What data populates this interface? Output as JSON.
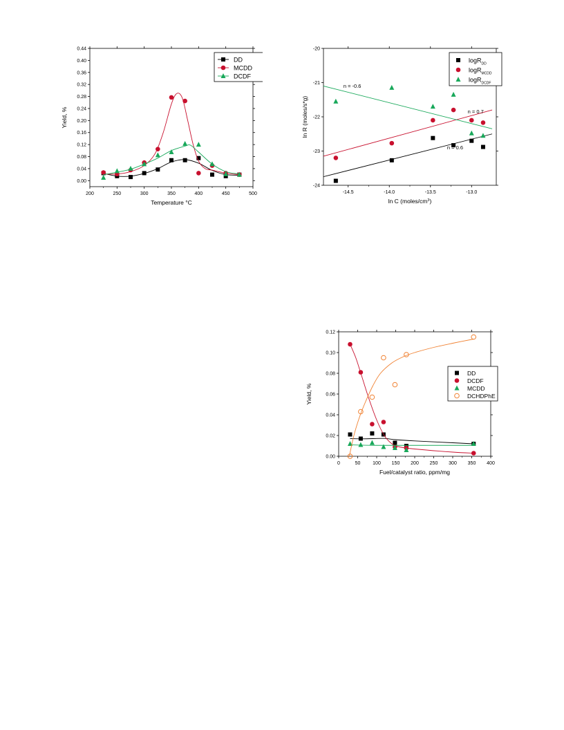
{
  "chart_data": [
    {
      "type": "scatter",
      "xlabel": "Temperature °C",
      "ylabel": "Yield, %",
      "xlim": [
        200,
        500
      ],
      "ylim": [
        -0.02,
        0.44
      ],
      "xticks": [
        200,
        250,
        300,
        350,
        400,
        450,
        500
      ],
      "xtick_labels": [
        "200",
        "250",
        "300",
        "350",
        "400",
        "450",
        "500"
      ],
      "yticks": [
        0.0,
        0.04,
        0.08,
        0.12,
        0.16,
        0.2,
        0.24,
        0.28,
        0.32,
        0.36,
        0.4,
        0.44
      ],
      "ytick_labels": [
        "0.00",
        "0.04",
        "0.08",
        "0.12",
        "0.16",
        "0.20",
        "0.24",
        "0.28",
        "0.32",
        "0.36",
        "0.40",
        "0.44"
      ],
      "legend": "top-right",
      "grid": false,
      "series": [
        {
          "name": "DD",
          "marker": "square",
          "color": "#000000",
          "points": [
            [
              225,
              0.025
            ],
            [
              250,
              0.015
            ],
            [
              275,
              0.012
            ],
            [
              300,
              0.025
            ],
            [
              325,
              0.037
            ],
            [
              350,
              0.068
            ],
            [
              375,
              0.068
            ],
            [
              400,
              0.075
            ],
            [
              425,
              0.02
            ],
            [
              450,
              0.015
            ],
            [
              475,
              0.02
            ]
          ],
          "fit": [
            [
              225,
              0.024
            ],
            [
              250,
              0.015
            ],
            [
              275,
              0.015
            ],
            [
              300,
              0.024
            ],
            [
              325,
              0.04
            ],
            [
              350,
              0.062
            ],
            [
              375,
              0.07
            ],
            [
              400,
              0.058
            ],
            [
              425,
              0.034
            ],
            [
              450,
              0.02
            ],
            [
              475,
              0.018
            ]
          ]
        },
        {
          "name": "MCDD",
          "marker": "circle",
          "color": "#c8102e",
          "points": [
            [
              225,
              0.027
            ],
            [
              250,
              0.022
            ],
            [
              275,
              0.035
            ],
            [
              300,
              0.06
            ],
            [
              325,
              0.105
            ],
            [
              350,
              0.277
            ],
            [
              375,
              0.265
            ],
            [
              400,
              0.025
            ],
            [
              425,
              0.05
            ],
            [
              450,
              0.025
            ],
            [
              475,
              0.02
            ]
          ],
          "fit": [
            [
              225,
              0.022
            ],
            [
              250,
              0.022
            ],
            [
              275,
              0.03
            ],
            [
              300,
              0.05
            ],
            [
              320,
              0.09
            ],
            [
              335,
              0.16
            ],
            [
              350,
              0.255
            ],
            [
              360,
              0.29
            ],
            [
              370,
              0.275
            ],
            [
              380,
              0.2
            ],
            [
              390,
              0.12
            ],
            [
              400,
              0.065
            ],
            [
              412,
              0.04
            ],
            [
              425,
              0.035
            ],
            [
              450,
              0.025
            ],
            [
              475,
              0.02
            ]
          ]
        },
        {
          "name": "DCDF",
          "marker": "triangle",
          "color": "#18a85a",
          "points": [
            [
              225,
              0.01
            ],
            [
              250,
              0.032
            ],
            [
              275,
              0.04
            ],
            [
              300,
              0.055
            ],
            [
              325,
              0.085
            ],
            [
              350,
              0.095
            ],
            [
              375,
              0.123
            ],
            [
              400,
              0.12
            ],
            [
              425,
              0.055
            ],
            [
              450,
              0.022
            ],
            [
              475,
              0.02
            ]
          ],
          "fit": [
            [
              225,
              0.02
            ],
            [
              250,
              0.028
            ],
            [
              275,
              0.038
            ],
            [
              300,
              0.055
            ],
            [
              325,
              0.075
            ],
            [
              350,
              0.1
            ],
            [
              375,
              0.115
            ],
            [
              385,
              0.118
            ],
            [
              400,
              0.095
            ],
            [
              425,
              0.055
            ],
            [
              450,
              0.03
            ],
            [
              475,
              0.022
            ]
          ]
        }
      ]
    },
    {
      "type": "scatter",
      "xlabel": "ln C (moles/cm",
      "xlabel_sup": "3",
      "xlabel_end": ")",
      "ylabel": "ln R (moles/s*g)",
      "xlim": [
        -14.8,
        -12.7
      ],
      "ylim": [
        -24,
        -20
      ],
      "xticks": [
        -14.5,
        -14.0,
        -13.5,
        -13.0
      ],
      "xtick_labels": [
        "-14.5",
        "-14.0",
        "-13.5",
        "-13.0"
      ],
      "yticks": [
        -24,
        -23,
        -22,
        -21,
        -20
      ],
      "ytick_labels": [
        "-24",
        "-23",
        "-22",
        "-21",
        "-20"
      ],
      "legend": "top-right",
      "grid": false,
      "annotations": [
        {
          "text": "n = -0.6",
          "x": -14.45,
          "y": -21.15
        },
        {
          "text": "n = 0.7",
          "x": -12.95,
          "y": -21.9
        },
        {
          "text": "n = 0.6",
          "x": -13.2,
          "y": -22.95
        }
      ],
      "series": [
        {
          "name": "logR",
          "sub": "DD",
          "marker": "square",
          "color": "#000000",
          "points": [
            [
              -14.65,
              -23.87
            ],
            [
              -13.97,
              -23.27
            ],
            [
              -13.47,
              -22.62
            ],
            [
              -13.22,
              -22.83
            ],
            [
              -13.0,
              -22.7
            ],
            [
              -12.86,
              -22.88
            ]
          ],
          "fit": [
            [
              -14.8,
              -23.75
            ],
            [
              -12.75,
              -22.5
            ]
          ]
        },
        {
          "name": "logR",
          "sub": "MCDD",
          "marker": "circle",
          "color": "#c8102e",
          "points": [
            [
              -14.65,
              -23.2
            ],
            [
              -13.97,
              -22.77
            ],
            [
              -13.47,
              -22.1
            ],
            [
              -13.22,
              -21.8
            ],
            [
              -13.0,
              -22.1
            ],
            [
              -12.86,
              -22.17
            ]
          ],
          "fit": [
            [
              -14.8,
              -23.15
            ],
            [
              -12.75,
              -21.8
            ]
          ]
        },
        {
          "name": "logR",
          "sub": "DCDF",
          "marker": "triangle",
          "color": "#18a85a",
          "points": [
            [
              -14.65,
              -21.55
            ],
            [
              -13.97,
              -21.15
            ],
            [
              -13.47,
              -21.7
            ],
            [
              -13.22,
              -21.35
            ],
            [
              -13.0,
              -22.48
            ],
            [
              -12.86,
              -22.55
            ]
          ],
          "fit": [
            [
              -14.8,
              -21.1
            ],
            [
              -12.75,
              -22.35
            ]
          ]
        }
      ]
    },
    {
      "type": "scatter",
      "xlabel": "Fuel/catalyst ratio, ppm/mg",
      "ylabel": "Yield, %",
      "xlim": [
        0,
        400
      ],
      "ylim": [
        0,
        0.12
      ],
      "xticks": [
        0,
        50,
        100,
        150,
        200,
        250,
        300,
        350,
        400
      ],
      "xtick_labels": [
        "0",
        "50",
        "100",
        "150",
        "200",
        "250",
        "300",
        "350",
        "400"
      ],
      "yticks": [
        0.0,
        0.02,
        0.04,
        0.06,
        0.08,
        0.1,
        0.12
      ],
      "ytick_labels": [
        "0.00",
        "0.02",
        "0.04",
        "0.06",
        "0.08",
        "0.10",
        "0.12"
      ],
      "legend": "right",
      "grid": false,
      "series": [
        {
          "name": "DD",
          "marker": "square",
          "color": "#000000",
          "points": [
            [
              30,
              0.021
            ],
            [
              58,
              0.017
            ],
            [
              88,
              0.022
            ],
            [
              118,
              0.021
            ],
            [
              148,
              0.013
            ],
            [
              178,
              0.01
            ],
            [
              355,
              0.012
            ]
          ],
          "fit": [
            [
              30,
              0.017
            ],
            [
              60,
              0.0168
            ],
            [
              90,
              0.017
            ],
            [
              120,
              0.0172
            ],
            [
              150,
              0.016
            ],
            [
              200,
              0.0148
            ],
            [
              300,
              0.013
            ],
            [
              355,
              0.012
            ]
          ]
        },
        {
          "name": "DCDF",
          "marker": "circle",
          "color": "#c8102e",
          "points": [
            [
              30,
              0.108
            ],
            [
              58,
              0.081
            ],
            [
              88,
              0.031
            ],
            [
              118,
              0.033
            ],
            [
              148,
              0.009
            ],
            [
              178,
              0.008
            ],
            [
              355,
              0.003
            ]
          ],
          "fit": [
            [
              30,
              0.108
            ],
            [
              45,
              0.095
            ],
            [
              60,
              0.078
            ],
            [
              80,
              0.055
            ],
            [
              100,
              0.035
            ],
            [
              120,
              0.02
            ],
            [
              140,
              0.012
            ],
            [
              160,
              0.009
            ],
            [
              200,
              0.007
            ],
            [
              300,
              0.004
            ],
            [
              355,
              0.003
            ]
          ]
        },
        {
          "name": "MCDD",
          "marker": "triangle",
          "color": "#18a85a",
          "points": [
            [
              30,
              0.012
            ],
            [
              58,
              0.011
            ],
            [
              88,
              0.013
            ],
            [
              118,
              0.009
            ],
            [
              148,
              0.008
            ],
            [
              178,
              0.006
            ],
            [
              355,
              0.012
            ]
          ],
          "fit": [
            [
              30,
              0.011
            ],
            [
              100,
              0.0105
            ],
            [
              200,
              0.0105
            ],
            [
              355,
              0.0105
            ]
          ]
        },
        {
          "name": "DCHDPhE",
          "marker": "open-circle",
          "color": "#f08030",
          "points": [
            [
              30,
              0.0
            ],
            [
              58,
              0.043
            ],
            [
              88,
              0.057
            ],
            [
              118,
              0.095
            ],
            [
              148,
              0.069
            ],
            [
              178,
              0.098
            ],
            [
              355,
              0.115
            ]
          ],
          "fit": [
            [
              28,
              0.0
            ],
            [
              40,
              0.02
            ],
            [
              55,
              0.038
            ],
            [
              70,
              0.052
            ],
            [
              90,
              0.068
            ],
            [
              110,
              0.08
            ],
            [
              140,
              0.09
            ],
            [
              170,
              0.096
            ],
            [
              200,
              0.1
            ],
            [
              250,
              0.105
            ],
            [
              300,
              0.109
            ],
            [
              355,
              0.113
            ]
          ]
        }
      ]
    }
  ]
}
